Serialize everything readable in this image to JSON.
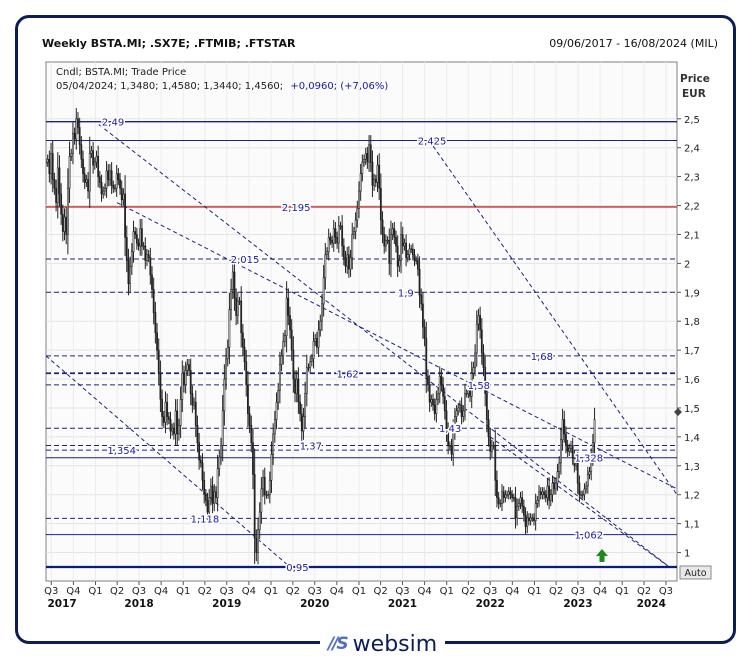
{
  "header": {
    "title": "Weekly BSTA.MI; .SX7E; .FTMIB; .FTSTAR",
    "date_range": "09/06/2017 - 16/08/2024 (MIL)"
  },
  "legend": {
    "line1": "Cndl; BSTA.MI; Trade Price",
    "line2_values": "05/04/2024; 1,3480; 1,4580; 1,3440; 1,4560;",
    "line2_change": "+0,0960; (+7,06%)"
  },
  "axis": {
    "price_label": "Price",
    "currency_label": "EUR",
    "auto_button": "Auto"
  },
  "logo": {
    "mark": "//S",
    "text": "websim"
  },
  "chart_data": {
    "type": "candlestick",
    "title": "Weekly BSTA.MI; .SX7E; .FTMIB; .FTSTAR",
    "ylabel": "Price EUR",
    "ylim": [
      0.95,
      2.52
    ],
    "x_range": [
      "2017-06-09",
      "2024-08-16"
    ],
    "y_ticks": [
      {
        "value": 2.5,
        "label": "2,5"
      },
      {
        "value": 2.4,
        "label": "2,4"
      },
      {
        "value": 2.3,
        "label": "2,3"
      },
      {
        "value": 2.2,
        "label": "2,2"
      },
      {
        "value": 2.1,
        "label": "2,1"
      },
      {
        "value": 2.0,
        "label": "2"
      },
      {
        "value": 1.9,
        "label": "1,9"
      },
      {
        "value": 1.8,
        "label": "1,8"
      },
      {
        "value": 1.7,
        "label": "1,7"
      },
      {
        "value": 1.6,
        "label": "1,6"
      },
      {
        "value": 1.5,
        "label": "1,5"
      },
      {
        "value": 1.4,
        "label": "1,4"
      },
      {
        "value": 1.3,
        "label": "1,3"
      },
      {
        "value": 1.2,
        "label": "1,2"
      },
      {
        "value": 1.1,
        "label": "1,1"
      },
      {
        "value": 1.0,
        "label": "1"
      }
    ],
    "quarters": [
      {
        "date": "2017-07-01",
        "label": "Q3"
      },
      {
        "date": "2017-10-01",
        "label": "Q4"
      },
      {
        "date": "2018-01-01",
        "label": "Q1"
      },
      {
        "date": "2018-04-01",
        "label": "Q2"
      },
      {
        "date": "2018-07-01",
        "label": "Q3"
      },
      {
        "date": "2018-10-01",
        "label": "Q4"
      },
      {
        "date": "2019-01-01",
        "label": "Q1"
      },
      {
        "date": "2019-04-01",
        "label": "Q2"
      },
      {
        "date": "2019-07-01",
        "label": "Q3"
      },
      {
        "date": "2019-10-01",
        "label": "Q4"
      },
      {
        "date": "2020-01-01",
        "label": "Q1"
      },
      {
        "date": "2020-04-01",
        "label": "Q2"
      },
      {
        "date": "2020-07-01",
        "label": "Q3"
      },
      {
        "date": "2020-10-01",
        "label": "Q4"
      },
      {
        "date": "2021-01-01",
        "label": "Q1"
      },
      {
        "date": "2021-04-01",
        "label": "Q2"
      },
      {
        "date": "2021-07-01",
        "label": "Q3"
      },
      {
        "date": "2021-10-01",
        "label": "Q4"
      },
      {
        "date": "2022-01-01",
        "label": "Q1"
      },
      {
        "date": "2022-04-01",
        "label": "Q2"
      },
      {
        "date": "2022-07-01",
        "label": "Q3"
      },
      {
        "date": "2022-10-01",
        "label": "Q4"
      },
      {
        "date": "2023-01-01",
        "label": "Q1"
      },
      {
        "date": "2023-04-01",
        "label": "Q2"
      },
      {
        "date": "2023-07-01",
        "label": "Q3"
      },
      {
        "date": "2023-10-01",
        "label": "Q4"
      },
      {
        "date": "2024-01-01",
        "label": "Q1"
      },
      {
        "date": "2024-04-01",
        "label": "Q2"
      },
      {
        "date": "2024-07-01",
        "label": "Q3"
      }
    ],
    "years": [
      {
        "date": "2017-08-15",
        "label": "2017"
      },
      {
        "date": "2018-07-01",
        "label": "2018"
      },
      {
        "date": "2019-07-01",
        "label": "2019"
      },
      {
        "date": "2020-07-01",
        "label": "2020"
      },
      {
        "date": "2021-07-01",
        "label": "2021"
      },
      {
        "date": "2022-07-01",
        "label": "2022"
      },
      {
        "date": "2023-07-01",
        "label": "2023"
      },
      {
        "date": "2024-05-01",
        "label": "2024"
      }
    ],
    "levels": [
      {
        "value": 2.49,
        "label": "2,49",
        "color": "#1a237e",
        "style": "solid",
        "width": 1.4,
        "label_date": "2018-03-15"
      },
      {
        "value": 2.425,
        "label": "2,425",
        "color": "#1a237e",
        "style": "solid",
        "width": 1,
        "label_date": "2021-11-01"
      },
      {
        "value": 2.195,
        "label": "2,195",
        "color": "#c62828",
        "style": "solid",
        "width": 1.4,
        "label_date": "2020-04-15"
      },
      {
        "value": 2.015,
        "label": "2,015",
        "color": "#1a237e",
        "style": "dashed",
        "width": 1,
        "label_date": "2019-09-15"
      },
      {
        "value": 1.9,
        "label": "1,9",
        "color": "#1a237e",
        "style": "dashed",
        "width": 1,
        "label_date": "2021-07-15"
      },
      {
        "value": 1.68,
        "label": "1,68",
        "color": "#1a237e",
        "style": "dashed",
        "width": 1,
        "label_date": "2023-02-01"
      },
      {
        "value": 1.62,
        "label": "1,62",
        "color": "#1a237e",
        "style": "dashed",
        "width": 1.8,
        "label_date": "2020-11-15"
      },
      {
        "value": 1.58,
        "label": "1,58",
        "color": "#1a237e",
        "style": "dashed",
        "width": 1,
        "label_date": "2022-05-15"
      },
      {
        "value": 1.43,
        "label": "1,43",
        "color": "#1a237e",
        "style": "dashed",
        "width": 1,
        "label_date": "2022-01-15"
      },
      {
        "value": 1.37,
        "label": "1,37",
        "color": "#1a237e",
        "style": "dashed",
        "width": 1,
        "label_date": "2020-06-15"
      },
      {
        "value": 1.354,
        "label": "1,354",
        "color": "#1a237e",
        "style": "dashed",
        "width": 1,
        "label_date": "2018-04-20"
      },
      {
        "value": 1.328,
        "label": "1,328",
        "color": "#1a237e",
        "style": "solid",
        "width": 1,
        "label_date": "2023-08-15"
      },
      {
        "value": 1.118,
        "label": "1,118",
        "color": "#1a237e",
        "style": "dashed",
        "width": 1,
        "label_date": "2019-04-01"
      },
      {
        "value": 1.062,
        "label": "1,062",
        "color": "#1a237e",
        "style": "solid",
        "width": 1,
        "label_date": "2023-08-15"
      },
      {
        "value": 0.95,
        "label": "0,95",
        "color": "#0d1b7a",
        "style": "solid",
        "width": 2.2,
        "label_date": "2020-04-20"
      }
    ],
    "trendlines": [
      {
        "from": {
          "date": "2017-06-09",
          "value": 1.68
        },
        "to": {
          "date": "2020-03-20",
          "value": 0.95
        }
      },
      {
        "from": {
          "date": "2018-01-15",
          "value": 2.48
        },
        "to": {
          "date": "2024-07-15",
          "value": 0.95
        }
      },
      {
        "from": {
          "date": "2018-04-01",
          "value": 2.21
        },
        "to": {
          "date": "2024-08-16",
          "value": 1.22
        }
      },
      {
        "from": {
          "date": "2021-10-20",
          "value": 2.425
        },
        "to": {
          "date": "2024-08-16",
          "value": 1.2
        }
      },
      {
        "from": {
          "date": "2022-07-01",
          "value": 1.4
        },
        "to": {
          "date": "2024-07-15",
          "value": 0.95
        }
      }
    ],
    "ohlc_series": {
      "start": "2017-06-09",
      "interval_days": 7,
      "close": [
        2.35,
        2.36,
        2.31,
        2.38,
        2.29,
        2.26,
        2.21,
        2.33,
        2.24,
        2.17,
        2.11,
        2.16,
        2.1,
        2.26,
        2.37,
        2.38,
        2.45,
        2.43,
        2.5,
        2.47,
        2.41,
        2.36,
        2.31,
        2.28,
        2.29,
        2.25,
        2.38,
        2.39,
        2.34,
        2.35,
        2.37,
        2.3,
        2.28,
        2.24,
        2.25,
        2.26,
        2.32,
        2.29,
        2.32,
        2.27,
        2.26,
        2.26,
        2.31,
        2.29,
        2.26,
        2.22,
        2.24,
        2.09,
        2.01,
        1.93,
        1.99,
        2.04,
        2.11,
        2.1,
        2.07,
        2.06,
        2.12,
        2.06,
        2.06,
        2.01,
        2.03,
        2.02,
        1.96,
        1.91,
        1.83,
        1.76,
        1.7,
        1.62,
        1.53,
        1.47,
        1.45,
        1.52,
        1.47,
        1.46,
        1.42,
        1.43,
        1.41,
        1.49,
        1.41,
        1.44,
        1.53,
        1.62,
        1.58,
        1.63,
        1.65,
        1.63,
        1.55,
        1.51,
        1.52,
        1.44,
        1.38,
        1.32,
        1.31,
        1.25,
        1.2,
        1.18,
        1.14,
        1.19,
        1.23,
        1.17,
        1.21,
        1.19,
        1.29,
        1.33,
        1.37,
        1.49,
        1.6,
        1.67,
        1.71,
        1.84,
        1.91,
        1.97,
        1.88,
        1.82,
        1.87,
        1.87,
        1.76,
        1.71,
        1.66,
        1.58,
        1.48,
        1.44,
        1.38,
        1.27,
        1.05,
        1.0,
        1.08,
        1.14,
        1.22,
        1.26,
        1.2,
        1.2,
        1.2,
        1.25,
        1.34,
        1.41,
        1.46,
        1.52,
        1.56,
        1.65,
        1.68,
        1.73,
        1.75,
        1.88,
        1.82,
        1.77,
        1.7,
        1.6,
        1.55,
        1.6,
        1.52,
        1.48,
        1.42,
        1.47,
        1.55,
        1.64,
        1.64,
        1.66,
        1.67,
        1.73,
        1.74,
        1.71,
        1.77,
        1.8,
        1.86,
        1.95,
        2.03,
        2.04,
        2.09,
        2.08,
        2.07,
        2.12,
        2.09,
        2.07,
        2.13,
        2.13,
        2.06,
        2.02,
        1.99,
        2.03,
        1.98,
        2.02,
        2.1,
        2.11,
        2.15,
        2.19,
        2.25,
        2.31,
        2.35,
        2.36,
        2.38,
        2.35,
        2.41,
        2.35,
        2.27,
        2.29,
        2.28,
        2.34,
        2.26,
        2.15,
        2.1,
        2.06,
        2.08,
        2.08,
        2.0,
        2.1,
        2.12,
        2.09,
        2.06,
        1.99,
        2.01,
        2.1,
        2.06,
        2.07,
        2.02,
        2.03,
        2.05,
        2.05,
        2.03,
        2.01,
        2.01,
        1.98,
        1.89,
        1.86,
        1.78,
        1.74,
        1.61,
        1.58,
        1.52,
        1.53,
        1.51,
        1.48,
        1.53,
        1.55,
        1.61,
        1.58,
        1.54,
        1.49,
        1.42,
        1.37,
        1.37,
        1.34,
        1.42,
        1.47,
        1.49,
        1.5,
        1.51,
        1.47,
        1.49,
        1.55,
        1.55,
        1.56,
        1.54,
        1.62,
        1.64,
        1.69,
        1.79,
        1.82,
        1.77,
        1.69,
        1.64,
        1.55,
        1.46,
        1.4,
        1.35,
        1.37,
        1.37,
        1.25,
        1.19,
        1.17,
        1.17,
        1.21,
        1.19,
        1.2,
        1.2,
        1.21,
        1.2,
        1.19,
        1.19,
        1.12,
        1.16,
        1.17,
        1.19,
        1.16,
        1.13,
        1.09,
        1.12,
        1.11,
        1.12,
        1.12,
        1.11,
        1.17,
        1.18,
        1.21,
        1.2,
        1.21,
        1.2,
        1.19,
        1.23,
        1.18,
        1.2,
        1.24,
        1.22,
        1.24,
        1.28,
        1.31,
        1.39,
        1.46,
        1.41,
        1.37,
        1.35,
        1.36,
        1.37,
        1.33,
        1.3,
        1.31,
        1.24,
        1.2,
        1.2,
        1.2,
        1.22,
        1.23,
        1.27,
        1.28,
        1.33,
        1.38,
        1.46
      ]
    }
  }
}
